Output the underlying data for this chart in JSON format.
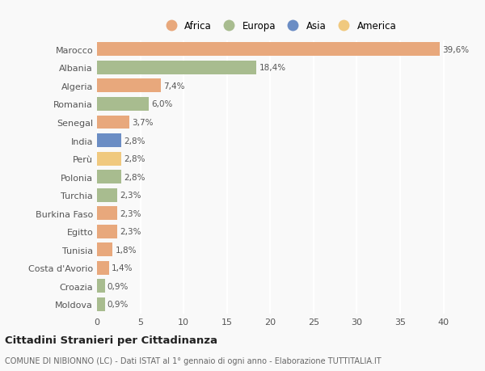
{
  "categories": [
    "Marocco",
    "Albania",
    "Algeria",
    "Romania",
    "Senegal",
    "India",
    "Perù",
    "Polonia",
    "Turchia",
    "Burkina Faso",
    "Egitto",
    "Tunisia",
    "Costa d'Avorio",
    "Croazia",
    "Moldova"
  ],
  "values": [
    39.6,
    18.4,
    7.4,
    6.0,
    3.7,
    2.8,
    2.8,
    2.8,
    2.3,
    2.3,
    2.3,
    1.8,
    1.4,
    0.9,
    0.9
  ],
  "labels": [
    "39,6%",
    "18,4%",
    "7,4%",
    "6,0%",
    "3,7%",
    "2,8%",
    "2,8%",
    "2,8%",
    "2,3%",
    "2,3%",
    "2,3%",
    "1,8%",
    "1,4%",
    "0,9%",
    "0,9%"
  ],
  "continents": [
    "Africa",
    "Europa",
    "Africa",
    "Europa",
    "Africa",
    "Asia",
    "America",
    "Europa",
    "Europa",
    "Africa",
    "Africa",
    "Africa",
    "Africa",
    "Europa",
    "Europa"
  ],
  "continent_colors": {
    "Africa": "#E8A87C",
    "Europa": "#A8BC8F",
    "Asia": "#6B8DC4",
    "America": "#F0C97F"
  },
  "legend_order": [
    "Africa",
    "Europa",
    "Asia",
    "America"
  ],
  "background_color": "#f9f9f9",
  "plot_bg_color": "#f9f9f9",
  "grid_color": "#ffffff",
  "title": "Cittadini Stranieri per Cittadinanza",
  "subtitle": "COMUNE DI NIBIONNO (LC) - Dati ISTAT al 1° gennaio di ogni anno - Elaborazione TUTTITALIA.IT",
  "xlim": [
    0,
    42
  ],
  "xticks": [
    0,
    5,
    10,
    15,
    20,
    25,
    30,
    35,
    40
  ],
  "bar_height": 0.75
}
